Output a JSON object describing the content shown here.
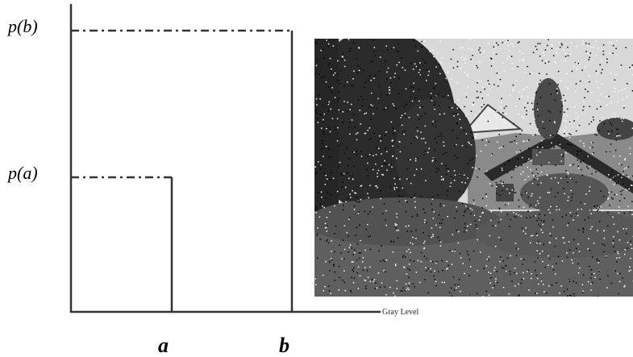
{
  "diagram": {
    "y_labels": [
      "p(b)",
      "p(a)"
    ],
    "x_labels": [
      "a",
      "b"
    ],
    "x_axis_label": "Gray Level"
  }
}
